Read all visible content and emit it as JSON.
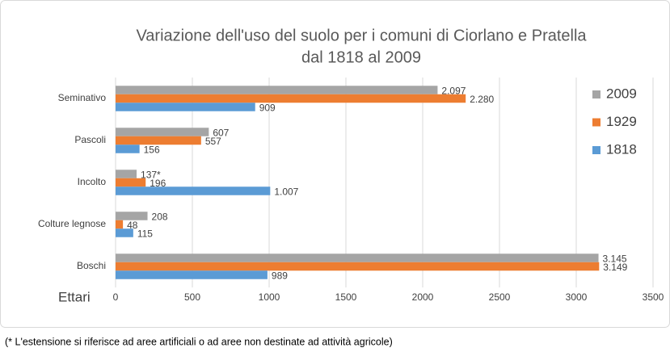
{
  "chart_data": {
    "type": "hbar",
    "title": [
      "Variazione dell'uso del suolo per i comuni di Ciorlano e Pratella",
      "dal 1818 al 2009"
    ],
    "xlabel": "Ettari",
    "categories": [
      "Seminativo",
      "Pascoli",
      "Incolto",
      "Colture legnose",
      "Boschi"
    ],
    "series": [
      {
        "name": "2009",
        "color": "#a5a5a5",
        "values": [
          2097,
          607,
          137,
          208,
          3145
        ],
        "value_labels": [
          "2.097",
          "607",
          "137*",
          "208",
          "3.145"
        ]
      },
      {
        "name": "1929",
        "color": "#ed7d31",
        "values": [
          2280,
          557,
          196,
          48,
          3149
        ],
        "value_labels": [
          "2.280",
          "557",
          "196",
          "48",
          "3.149"
        ]
      },
      {
        "name": "1818",
        "color": "#5b9bd5",
        "values": [
          909,
          156,
          1007,
          115,
          989
        ],
        "value_labels": [
          "909",
          "156",
          "1.007",
          "115",
          "989"
        ]
      }
    ],
    "xlim": [
      0,
      3500
    ],
    "xticks": [
      0,
      500,
      1000,
      1500,
      2000,
      2500,
      3000,
      3500
    ],
    "grid": true,
    "legend": "right",
    "footnote": "(* L'estensione si riferisce ad aree artificiali o ad aree non destinate ad attività agricole)"
  }
}
